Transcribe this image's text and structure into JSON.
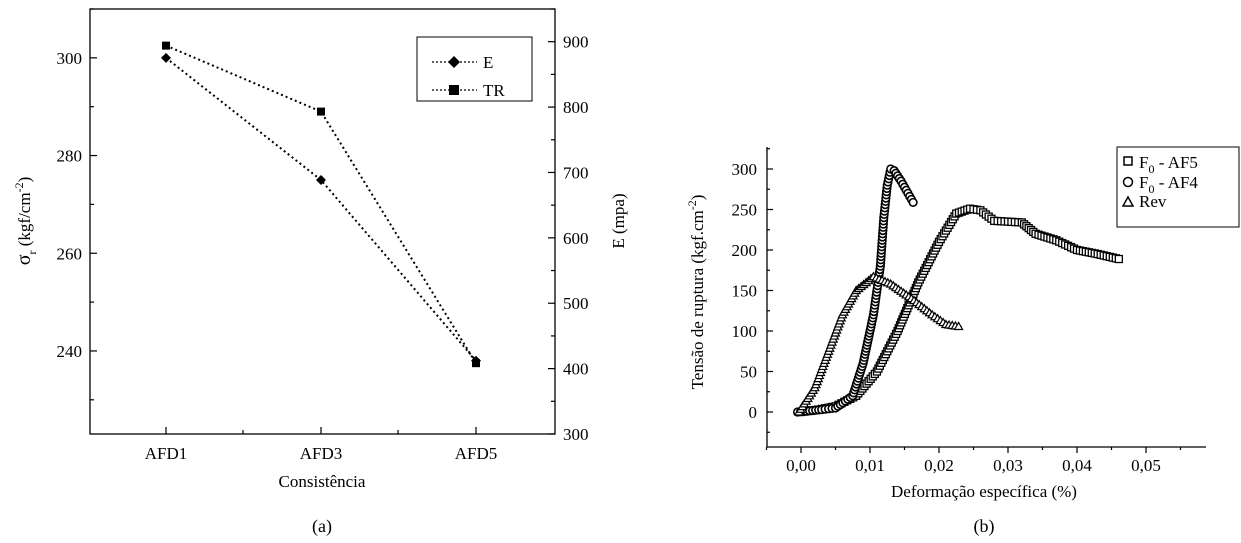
{
  "chart_data": [
    {
      "type": "line",
      "xlabel": "Consistência",
      "ylabel_left_symbol": "σ",
      "ylabel_left_sub": "r",
      "ylabel_left_unit": " (kgf/cm",
      "ylabel_left_sup": "-2",
      "ylabel_left_close": ")",
      "ylabel_right": "E (mpa)",
      "categories": [
        "AFD1",
        "AFD3",
        "AFD5"
      ],
      "y_left_range": [
        223,
        310
      ],
      "y_right_range": [
        300,
        950
      ],
      "y_left_ticks": [
        "240",
        "260",
        "280",
        "300"
      ],
      "y_right_ticks": [
        "300",
        "400",
        "500",
        "600",
        "700",
        "800",
        "900"
      ],
      "legend_position": "top-right",
      "series": [
        {
          "name": "E",
          "axis": "left",
          "marker": "diamond",
          "values": [
            300,
            275,
            238
          ]
        },
        {
          "name": "TR",
          "axis": "left",
          "marker": "square",
          "values": [
            302.5,
            289,
            237.5
          ]
        }
      ],
      "caption": "(a)"
    },
    {
      "type": "line",
      "xlabel": "Deformação específica (%)",
      "ylabel": "Tensão de ruptura (kgf.cm",
      "ylabel_sup": "-2",
      "ylabel_close": ")",
      "xlim": [
        -0.005,
        0.055
      ],
      "ylim": [
        -50,
        325
      ],
      "x_ticks": [
        "0,00",
        "0,01",
        "0,02",
        "0,03",
        "0,04",
        "0,05"
      ],
      "y_ticks": [
        "0",
        "50",
        "100",
        "150",
        "200",
        "250",
        "300"
      ],
      "legend_position": "top-right",
      "series": [
        {
          "name_main": "F",
          "name_sub": "0",
          "name_rest": " - AF5",
          "marker": "square",
          "x": [
            0.0,
            0.0025,
            0.005,
            0.008,
            0.011,
            0.014,
            0.017,
            0.02,
            0.0225,
            0.0245,
            0.026,
            0.028,
            0.03,
            0.032,
            0.034,
            0.037,
            0.04,
            0.043,
            0.0465
          ],
          "y": [
            0,
            3,
            7,
            20,
            50,
            100,
            160,
            210,
            245,
            251,
            249,
            236,
            235,
            234,
            220,
            212,
            200,
            195,
            188
          ]
        },
        {
          "name_main": "F",
          "name_sub": "0",
          "name_rest": " - AF4",
          "marker": "circle",
          "x": [
            -0.0005,
            0.003,
            0.005,
            0.0075,
            0.009,
            0.0105,
            0.0115,
            0.012,
            0.0125,
            0.013,
            0.0135,
            0.0145,
            0.0155,
            0.0165
          ],
          "y": [
            0,
            3,
            5,
            20,
            60,
            120,
            180,
            240,
            280,
            300,
            298,
            285,
            270,
            255
          ]
        },
        {
          "name_main": "Rev",
          "name_sub": "",
          "name_rest": "",
          "marker": "triangle",
          "x": [
            -0.0003,
            0.002,
            0.004,
            0.006,
            0.008,
            0.0105,
            0.013,
            0.016,
            0.019,
            0.021,
            0.0233
          ],
          "y": [
            0,
            30,
            75,
            120,
            150,
            167,
            158,
            140,
            120,
            108,
            105
          ]
        }
      ],
      "caption": "(b)"
    }
  ]
}
